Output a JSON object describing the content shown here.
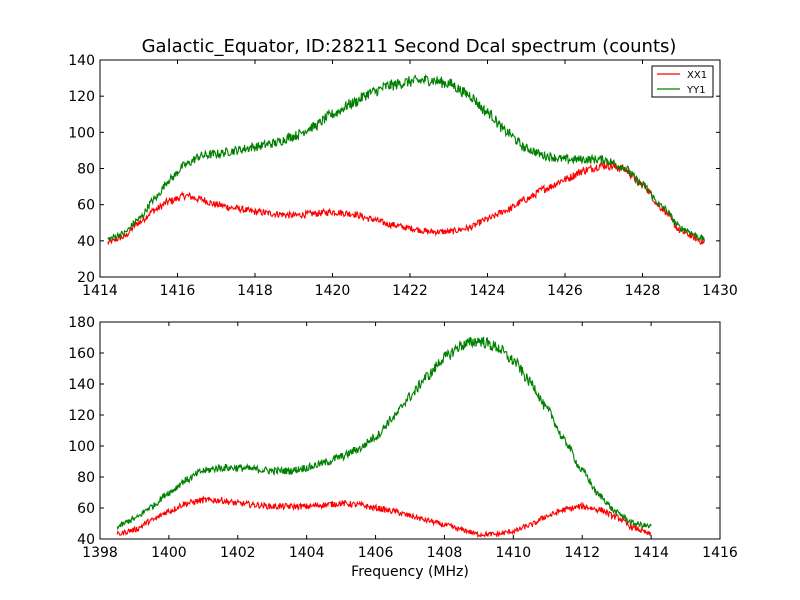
{
  "chart_data": [
    {
      "type": "line",
      "title": "Galactic_Equator, ID:28211 Second Dcal spectrum (counts)",
      "xlabel": "",
      "ylabel": "",
      "xlim": [
        1414,
        1430
      ],
      "ylim": [
        20,
        140
      ],
      "xticks": [
        "1414",
        "1416",
        "1418",
        "1420",
        "1422",
        "1424",
        "1426",
        "1428",
        "1430"
      ],
      "yticks": [
        "20",
        "40",
        "60",
        "80",
        "100",
        "120",
        "140"
      ],
      "legend": "top-right",
      "grid": false,
      "series": [
        {
          "name": "XX1",
          "color": "#ff0000",
          "x": [
            1414.2,
            1414.6,
            1415.0,
            1415.4,
            1415.8,
            1416.2,
            1416.6,
            1417.0,
            1417.5,
            1418.0,
            1418.5,
            1419.0,
            1419.5,
            1420.0,
            1420.5,
            1421.0,
            1421.5,
            1422.0,
            1422.5,
            1423.0,
            1423.5,
            1424.0,
            1424.5,
            1425.0,
            1425.5,
            1426.0,
            1426.5,
            1427.0,
            1427.5,
            1428.0,
            1428.5,
            1429.0,
            1429.6
          ],
          "y": [
            39,
            42,
            50,
            57,
            62,
            65,
            63,
            60,
            58,
            56,
            55,
            54,
            55,
            56,
            55,
            52,
            49,
            47,
            45,
            45,
            47,
            52,
            57,
            63,
            69,
            74,
            79,
            82,
            80,
            71,
            58,
            45,
            39
          ]
        },
        {
          "name": "YY1",
          "color": "#008000",
          "x": [
            1414.2,
            1414.6,
            1415.0,
            1415.4,
            1415.8,
            1416.2,
            1416.6,
            1417.0,
            1417.5,
            1418.0,
            1418.5,
            1419.0,
            1419.5,
            1420.0,
            1420.5,
            1421.0,
            1421.5,
            1422.0,
            1422.5,
            1423.0,
            1423.5,
            1424.0,
            1424.5,
            1425.0,
            1425.5,
            1426.0,
            1426.5,
            1427.0,
            1427.5,
            1428.0,
            1428.5,
            1429.0,
            1429.6
          ],
          "y": [
            41,
            44,
            52,
            63,
            74,
            82,
            87,
            88,
            90,
            92,
            94,
            98,
            103,
            110,
            116,
            122,
            126,
            128,
            129,
            127,
            121,
            111,
            100,
            91,
            87,
            85,
            85,
            85,
            81,
            71,
            59,
            47,
            41
          ]
        }
      ]
    },
    {
      "type": "line",
      "title": "",
      "xlabel": "Frequency (MHz)",
      "ylabel": "",
      "xlim": [
        1398,
        1416
      ],
      "ylim": [
        40,
        180
      ],
      "xticks": [
        "1398",
        "1400",
        "1402",
        "1404",
        "1406",
        "1408",
        "1410",
        "1412",
        "1414",
        "1416"
      ],
      "yticks": [
        "40",
        "60",
        "80",
        "100",
        "120",
        "140",
        "160",
        "180"
      ],
      "grid": false,
      "series": [
        {
          "color": "#ff0000",
          "x": [
            1398.5,
            1399.0,
            1399.5,
            1400.0,
            1400.5,
            1401.0,
            1401.5,
            1402.0,
            1402.5,
            1403.0,
            1403.5,
            1404.0,
            1404.5,
            1405.0,
            1405.5,
            1406.0,
            1406.5,
            1407.0,
            1407.5,
            1408.0,
            1408.5,
            1409.0,
            1409.5,
            1410.0,
            1410.5,
            1411.0,
            1411.5,
            1412.0,
            1412.5,
            1413.0,
            1413.5,
            1414.0
          ],
          "y": [
            43,
            46,
            52,
            58,
            63,
            65,
            65,
            63,
            62,
            61,
            61,
            61,
            62,
            63,
            62,
            60,
            58,
            55,
            52,
            49,
            46,
            43,
            43,
            45,
            49,
            55,
            59,
            61,
            59,
            54,
            47,
            43
          ]
        },
        {
          "color": "#008000",
          "x": [
            1398.5,
            1399.0,
            1399.5,
            1400.0,
            1400.5,
            1401.0,
            1401.5,
            1402.0,
            1402.5,
            1403.0,
            1403.5,
            1404.0,
            1404.5,
            1405.0,
            1405.5,
            1406.0,
            1406.5,
            1407.0,
            1407.5,
            1408.0,
            1408.5,
            1409.0,
            1409.5,
            1410.0,
            1410.5,
            1411.0,
            1411.5,
            1412.0,
            1412.5,
            1413.0,
            1413.5,
            1414.0
          ],
          "y": [
            48,
            53,
            61,
            70,
            78,
            84,
            86,
            86,
            85,
            84,
            84,
            86,
            89,
            93,
            98,
            106,
            118,
            132,
            145,
            157,
            165,
            168,
            164,
            155,
            141,
            123,
            103,
            84,
            68,
            57,
            50,
            48
          ]
        }
      ]
    }
  ]
}
